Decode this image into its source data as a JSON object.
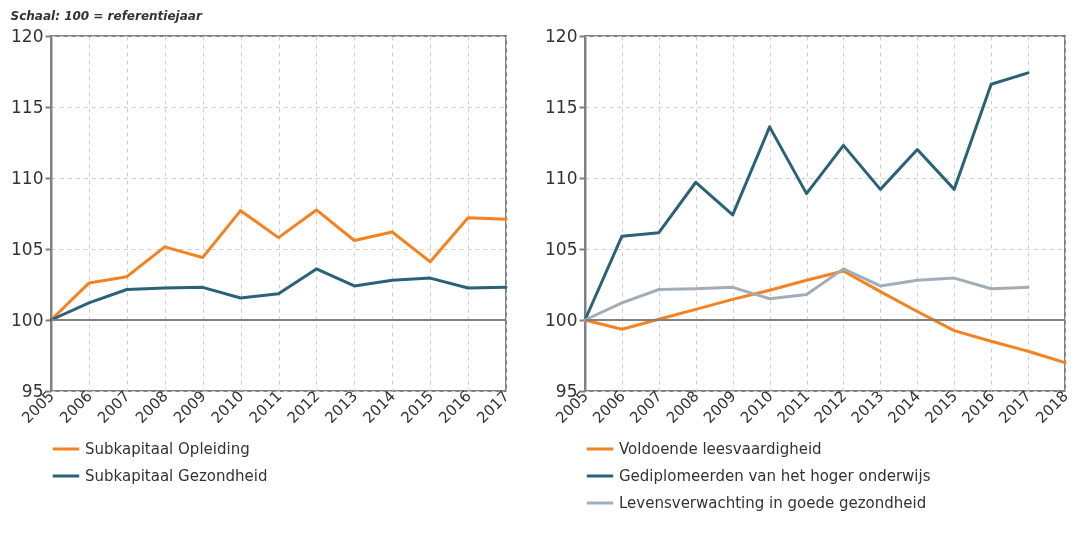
{
  "chart_data": [
    {
      "type": "line",
      "subtitle": "Schaal: 100 = referentiejaar",
      "x": [
        2005,
        2006,
        2007,
        2008,
        2009,
        2010,
        2011,
        2012,
        2013,
        2014,
        2015,
        2016,
        2017
      ],
      "xlim": [
        2005,
        2017
      ],
      "xticks": [
        2005,
        2006,
        2007,
        2008,
        2009,
        2010,
        2011,
        2012,
        2013,
        2014,
        2015,
        2016,
        2017
      ],
      "ylim": [
        95,
        120
      ],
      "yticks": [
        95,
        100,
        105,
        110,
        115,
        120
      ],
      "grid": true,
      "legend": "bottom",
      "line_style": "solid",
      "ref_lines": [
        {
          "axis": "y",
          "value": 100,
          "color": "#808080"
        }
      ],
      "series": [
        {
          "name": "Subkapitaal Opleiding",
          "color": "#f58220",
          "values": [
            100,
            102.6,
            103.05,
            105.15,
            104.4,
            107.7,
            105.8,
            107.75,
            105.6,
            106.2,
            104.1,
            107.2,
            107.1
          ]
        },
        {
          "name": "Subkapitaal Gezondheid",
          "color": "#2a6278",
          "values": [
            100,
            101.2,
            102.15,
            102.25,
            102.3,
            101.55,
            101.85,
            103.6,
            102.4,
            102.8,
            102.95,
            102.25,
            102.3
          ]
        }
      ]
    },
    {
      "type": "line",
      "x": [
        2005,
        2006,
        2007,
        2008,
        2009,
        2010,
        2011,
        2012,
        2013,
        2014,
        2015,
        2016,
        2017,
        2018
      ],
      "xlim": [
        2005,
        2018
      ],
      "xticks": [
        2005,
        2006,
        2007,
        2008,
        2009,
        2010,
        2011,
        2012,
        2013,
        2014,
        2015,
        2016,
        2017,
        2018
      ],
      "ylim": [
        95,
        120
      ],
      "yticks": [
        95,
        100,
        105,
        110,
        115,
        120
      ],
      "grid": true,
      "legend": "bottom",
      "line_style": "solid",
      "ref_lines": [
        {
          "axis": "y",
          "value": 100,
          "color": "#808080"
        }
      ],
      "series": [
        {
          "name": "Voldoende leesvaardigheid",
          "color": "#f58220",
          "values": [
            100,
            99.35,
            100.05,
            100.75,
            101.45,
            102.1,
            102.8,
            103.45,
            102.0,
            100.6,
            99.25,
            98.5,
            97.8,
            97.0
          ]
        },
        {
          "name": "Gediplomeerden van het hoger onderwijs",
          "color": "#2a6278",
          "values": [
            100,
            105.9,
            106.15,
            109.7,
            107.4,
            113.6,
            108.9,
            112.3,
            109.2,
            112.0,
            109.2,
            116.6,
            117.4,
            null
          ]
        },
        {
          "name": "Levensverwachting in goede gezondheid",
          "color": "#a3adb8",
          "values": [
            100,
            101.2,
            102.15,
            102.2,
            102.3,
            101.5,
            101.8,
            103.6,
            102.4,
            102.8,
            102.95,
            102.2,
            102.3,
            null
          ]
        }
      ]
    }
  ]
}
